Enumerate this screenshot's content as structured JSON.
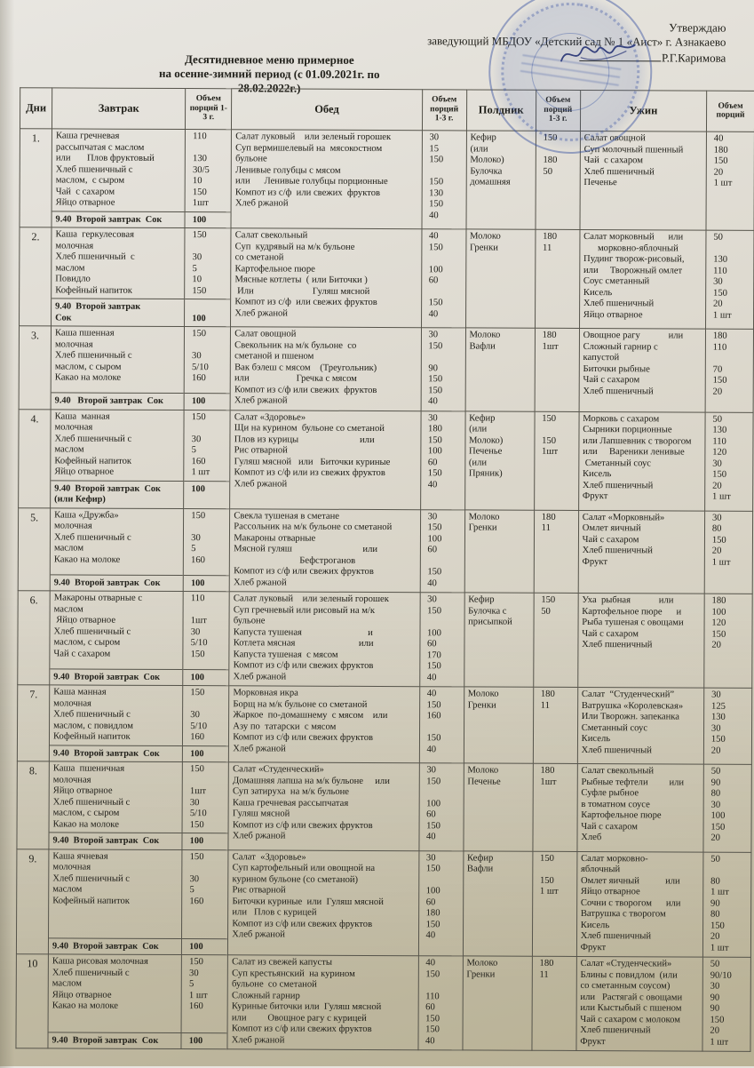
{
  "colors": {
    "stamp_blue": "#324e9f",
    "paper": "#d9d4c6",
    "ink": "#21201a",
    "signature_ink": "#26306e"
  },
  "approval": {
    "line1": "Утверждаю",
    "line2": "заведующий МБДОУ «Детский сад № 1 «Аист» г.  Азнакаево",
    "signee": "Р.Г.Каримова"
  },
  "title": {
    "line1": "Десятидневное меню примерное",
    "line2": "на осенне-зимний период (с 01.09.2021г. по 28.02.2022г.)"
  },
  "table": {
    "headers": [
      "Дни",
      "Завтрак",
      "Объем порций 1-3 г.",
      "Обед",
      "Объем порций 1-3 г.",
      "Полдник",
      "Объем порций 1-3 г.",
      "Ужин",
      "Объем порций"
    ],
    "days": [
      {
        "num": "1.",
        "breakfast": {
          "lines": [
            "Каша гречневая",
            "рассыпчатая с маслом",
            "или       Плов фруктовый",
            "Хлеб пшеничный с",
            "маслом,  с сыром",
            "Чай  с сахаром",
            "Яйцо отварное"
          ],
          "vols": [
            "110",
            "",
            "130",
            "30/5",
            "10",
            "150",
            "1шт"
          ]
        },
        "second_breakfast": {
          "lines": [
            "9.40  Второй завтрак  Сок"
          ],
          "vols": [
            "100"
          ]
        },
        "lunch": {
          "lines": [
            "Салат луковый    или зеленый горошек",
            "Суп вермишелевый на  мясокостном",
            "бульоне",
            "Ленивые голубцы с мясом",
            "или      Ленивые голубцы порционные",
            "Компот из с/ф  или свежих  фруктов",
            "Хлеб ржаной"
          ],
          "vols": [
            "30      15",
            "150",
            "",
            "150",
            "130",
            "150",
            "40"
          ]
        },
        "snack": {
          "lines": [
            "Кефир",
            "(или",
            "Молоко)",
            "Булочка",
            "домашняя"
          ],
          "vols": [
            "150",
            "",
            "180",
            "50",
            ""
          ]
        },
        "dinner": {
          "lines": [
            "Салат овощной",
            "Суп молочный пшенный",
            "Чай  с сахаром",
            "Хлеб пшеничный",
            "Печенье"
          ],
          "vols": [
            "40",
            "180",
            "150",
            "20",
            "1 шт"
          ]
        }
      },
      {
        "num": "2.",
        "breakfast": {
          "lines": [
            "Каша  геркулесовая",
            "молочная",
            "Хлеб пшеничный  с",
            "маслом",
            "Повидло",
            "Кофейный напиток"
          ],
          "vols": [
            "150",
            "",
            "30",
            "5",
            "10",
            "150"
          ]
        },
        "second_breakfast": {
          "lines": [
            "9.40  Второй завтрак",
            "Сок"
          ],
          "vols": [
            "",
            "100"
          ]
        },
        "lunch": {
          "lines": [
            "Салат свекольный",
            "Суп  кудрявый на м/к бульоне",
            "со сметаной",
            "Картофельное пюре",
            "Мясные котлеты  ( или Биточки )",
            " Или                         Гуляш мясной",
            "Компот из с/ф  или свежих фруктов",
            "Хлеб ржаной"
          ],
          "vols": [
            "40",
            "150",
            "",
            "100",
            "60",
            "",
            "150",
            "40"
          ]
        },
        "snack": {
          "lines": [
            "Молоко",
            "Гренки"
          ],
          "vols": [
            "180",
            "11"
          ]
        },
        "dinner": {
          "lines": [
            "Салат морковный      или",
            "      морковно-яблочный",
            "Пудинг творож-рисовый,",
            "или     Творожный омлет",
            "Соус сметанный",
            "Кисель",
            "Хлеб пшеничный",
            "Яйцо отварное"
          ],
          "vols": [
            "50",
            "",
            "130",
            "110",
            "30",
            "150",
            "20",
            "1 шт"
          ]
        }
      },
      {
        "num": "3.",
        "breakfast": {
          "lines": [
            "Каша пшенная",
            "молочная",
            "Хлеб пшеничный с",
            "маслом, с сыром",
            "Какао на молоке"
          ],
          "vols": [
            "150",
            "",
            "30",
            "5/10",
            "160"
          ]
        },
        "second_breakfast": {
          "lines": [
            "9.40   Второй завтрак  Сок"
          ],
          "vols": [
            "100"
          ]
        },
        "lunch": {
          "lines": [
            "Салат овощной",
            "Свекольник на м/к бульоне  со",
            "сметаной и пшеном",
            "Вак бэлеш с мясом    (Треугольник)",
            "или                    Гречка с мясом",
            "Компот из с/ф или свежих  фруктов",
            "Хлеб ржаной"
          ],
          "vols": [
            "30",
            "150",
            "",
            "90",
            "150",
            "150",
            "40"
          ]
        },
        "snack": {
          "lines": [
            "Молоко",
            "Вафли"
          ],
          "vols": [
            "180",
            "1шт"
          ]
        },
        "dinner": {
          "lines": [
            "Овощное рагу            или",
            "Сложный гарнир с",
            "капустой",
            "Биточки рыбные",
            "Чай с сахаром",
            "Хлеб пшеничный"
          ],
          "vols": [
            "180",
            "110",
            "",
            "70",
            "150",
            "20"
          ]
        }
      },
      {
        "num": "4.",
        "breakfast": {
          "lines": [
            "Каша  манная",
            "молочная",
            "Хлеб пшеничный с",
            "маслом",
            "Кофейный напиток",
            "Яйцо отварное"
          ],
          "vols": [
            "150",
            "",
            "30",
            "5",
            "160",
            "1 шт"
          ]
        },
        "second_breakfast": {
          "lines": [
            "9.40  Второй завтрак  Сок",
            "(или Кефир)"
          ],
          "vols": [
            "100",
            ""
          ]
        },
        "lunch": {
          "lines": [
            "Салат «Здоровье»",
            "Щи на курином  бульоне со сметаной",
            "Плов из курицы                          или",
            "Рис отварной",
            "Гуляш мясной   или   Биточки куриные",
            "Компот из с/ф или из свежих фруктов",
            "Хлеб ржаной"
          ],
          "vols": [
            "30",
            "180",
            "150",
            "100",
            "60",
            "150",
            "40"
          ]
        },
        "snack": {
          "lines": [
            "Кефир",
            "(или",
            "Молоко)",
            "Печенье",
            "(или",
            "Пряник)"
          ],
          "vols": [
            "150",
            "",
            "150",
            "1шт",
            "",
            ""
          ]
        },
        "dinner": {
          "lines": [
            "Морковь с сахаром",
            "Сырники порционные",
            "или Лапшевник с творогом",
            "или     Вареники ленивые",
            " Сметанный соус",
            "Кисель",
            "Хлеб пшеничный",
            "Фрукт"
          ],
          "vols": [
            "50",
            "130",
            "110",
            "120",
            "30",
            "150",
            "20",
            "1 шт"
          ]
        }
      },
      {
        "num": "5.",
        "breakfast": {
          "lines": [
            "Каша «Дружба»",
            "молочная",
            "Хлеб пшеничный с",
            "маслом",
            "Какао на молоке"
          ],
          "vols": [
            "150",
            "",
            "30",
            "5",
            "160"
          ]
        },
        "second_breakfast": {
          "lines": [
            "9.40  Второй завтрак  Сок"
          ],
          "vols": [
            "100"
          ]
        },
        "lunch": {
          "lines": [
            "Свекла тушеная в сметане",
            "Рассольник на м/к бульоне со сметаной",
            "Макароны отварные",
            "Мясной гуляш                              или",
            "                            Бефстроганов",
            "Компот из с/ф или свежих фруктов",
            "Хлеб ржаной"
          ],
          "vols": [
            "30",
            "150",
            "100",
            "60",
            "",
            "150",
            "40"
          ]
        },
        "snack": {
          "lines": [
            "Молоко",
            "Гренки"
          ],
          "vols": [
            "180",
            "11"
          ]
        },
        "dinner": {
          "lines": [
            "Салат «Морковный»",
            "Омлет яичный",
            "Чай с сахаром",
            "Хлеб пшеничный",
            "Фрукт"
          ],
          "vols": [
            "30",
            "80",
            "150",
            "20",
            "1 шт"
          ]
        }
      },
      {
        "num": "6.",
        "breakfast": {
          "lines": [
            "Макароны отварные с",
            "маслом",
            " Яйцо отварное",
            "Хлеб пшеничный с",
            "маслом, с сыром",
            "Чай с сахаром"
          ],
          "vols": [
            "110",
            "",
            "1шт",
            "30",
            "5/10",
            "150"
          ]
        },
        "second_breakfast": {
          "lines": [
            "9.40  Второй завтрак  Сок"
          ],
          "vols": [
            "100"
          ]
        },
        "lunch": {
          "lines": [
            "Салат луковый    или зеленый горошек",
            "Суп гречневый или рисовый на м/к",
            "бульоне",
            "Капуста тушеная                            и",
            "Котлета мясная                           или",
            "Капуста тушеная  с мясом",
            "Компот из с/ф или свежих фруктов",
            "Хлеб ржаной"
          ],
          "vols": [
            "30",
            "150",
            "",
            "100",
            "60",
            "170",
            "150",
            "40"
          ]
        },
        "snack": {
          "lines": [
            "Кефир",
            "Булочка с",
            "присыпкой"
          ],
          "vols": [
            "150",
            "50",
            ""
          ]
        },
        "dinner": {
          "lines": [
            "Уха  рыбная            или",
            "Картофельное пюре      и",
            "Рыба тушеная с овощами",
            "Чай с сахаром",
            "Хлеб пшеничный"
          ],
          "vols": [
            "180",
            "100",
            "120",
            "150",
            "20"
          ]
        }
      },
      {
        "num": "7.",
        "breakfast": {
          "lines": [
            "Каша манная",
            "молочная",
            "Хлеб пшеничный с",
            "маслом, с повидлом",
            "Кофейный напиток"
          ],
          "vols": [
            "150",
            "",
            "30",
            "5/10",
            "160"
          ]
        },
        "second_breakfast": {
          "lines": [
            "9.40  Второй завтрак  Сок"
          ],
          "vols": [
            "100"
          ]
        },
        "lunch": {
          "lines": [
            "Морковная икра",
            "Борщ на м/к бульоне со сметаной",
            "Жаркое  по-домашнему  с мясом    или",
            "Азу по  татарски  с мясом",
            "Компот из с/ф или свежих фруктов",
            "Хлеб ржаной"
          ],
          "vols": [
            "40",
            "150",
            "160",
            "",
            "150",
            "40"
          ]
        },
        "snack": {
          "lines": [
            "Молоко",
            "Гренки"
          ],
          "vols": [
            "180",
            "11"
          ]
        },
        "dinner": {
          "lines": [
            "Салат  “Студенческий”",
            "Ватрушка «Королевская»",
            "Или Творожн. запеканка",
            "Сметанный соус",
            "Кисель",
            "Хлеб пшеничный"
          ],
          "vols": [
            "30",
            "125",
            "130",
            "30",
            "150",
            "20"
          ]
        }
      },
      {
        "num": "8.",
        "breakfast": {
          "lines": [
            "Каша  пшеничная",
            "молочная",
            "Яйцо отварное",
            "Хлеб пшеничный с",
            "маслом, с сыром",
            "Какао на молоке"
          ],
          "vols": [
            "150",
            "",
            "1шт",
            "30",
            "5/10",
            "150"
          ]
        },
        "second_breakfast": {
          "lines": [
            "9.40  Второй завтрак  Сок"
          ],
          "vols": [
            "100"
          ]
        },
        "lunch": {
          "lines": [
            "Салат «Студенческий»",
            "Домашняя лапша на м/к бульоне     или",
            "Суп затируха  на м/к бульоне",
            "Каша гречневая рассыпчатая",
            "Гуляш мясной",
            "Компот из с/ф или свежих фруктов",
            "Хлеб ржаной"
          ],
          "vols": [
            "30",
            "150",
            "",
            "100",
            "60",
            "150",
            "40"
          ]
        },
        "snack": {
          "lines": [
            "Молоко",
            "Печенье"
          ],
          "vols": [
            "180",
            "1шт"
          ]
        },
        "dinner": {
          "lines": [
            "Салат свекольный",
            "Рыбные тефтели         или",
            "Суфле рыбное",
            "в томатном соусе",
            "Картофельное пюре",
            "Чай с сахаром",
            "Хлеб"
          ],
          "vols": [
            "50",
            "90",
            "80",
            "30",
            "100",
            "150",
            "20"
          ]
        }
      },
      {
        "num": "9.",
        "breakfast": {
          "lines": [
            "Каша ячневая",
            "молочная",
            "Хлеб пшеничный с",
            "маслом",
            "Кофейный напиток"
          ],
          "vols": [
            "150",
            "",
            "30",
            "5",
            "160"
          ]
        },
        "second_breakfast": {
          "lines": [
            "9.40  Второй завтрак  Сок"
          ],
          "vols": [
            "100"
          ]
        },
        "lunch": {
          "lines": [
            "Салат  «Здоровье»",
            "Суп картофельный или овощной на",
            "курином бульоне (со сметаной)",
            "Рис отварной",
            "Биточки куриные  или  Гуляш мясной",
            "или   Плов с курицей",
            "Компот из с/ф или свежих фруктов",
            "Хлеб ржаной"
          ],
          "vols": [
            "30",
            "150",
            "",
            "100",
            "60",
            "180",
            "150",
            "40"
          ]
        },
        "snack": {
          "lines": [
            "Кефир",
            "Вафли",
            "",
            ""
          ],
          "vols": [
            "150",
            "",
            "150",
            "1 шт"
          ]
        },
        "dinner": {
          "lines": [
            "Салат морковно-",
            "яблочный",
            "Омлет яичный           или",
            "Яйцо отварное",
            "Сочни с творогом      или",
            "Ватрушка с творогом",
            "Кисель",
            "Хлеб пшеничный",
            "Фрукт"
          ],
          "vols": [
            "50",
            "",
            "80",
            "1 шт",
            "90",
            "80",
            "150",
            "20",
            "1 шт"
          ]
        }
      },
      {
        "num": "10",
        "breakfast": {
          "lines": [
            "Каша рисовая молочная",
            "Хлеб пшеничный с",
            "маслом",
            "Яйцо отварное",
            "Какао на молоке"
          ],
          "vols": [
            "150",
            "30",
            "5",
            "1 шт",
            "160"
          ]
        },
        "second_breakfast": {
          "lines": [
            "9.40  Второй завтрак  Сок"
          ],
          "vols": [
            "100"
          ]
        },
        "lunch": {
          "lines": [
            "Салат из свежей капусты",
            "Суп крестьянский  на курином",
            "бульоне  со сметаной",
            "Сложный гарнир",
            "Куриные биточки или  Гуляш мясной",
            "или         Овощное рагу с курицей",
            "Компот из с/ф или свежих фруктов",
            "Хлеб ржаной"
          ],
          "vols": [
            "40",
            "150",
            "",
            "110",
            "60",
            "150",
            "150",
            "40"
          ]
        },
        "snack": {
          "lines": [
            "Молоко",
            "Гренки"
          ],
          "vols": [
            "180",
            "11"
          ]
        },
        "dinner": {
          "lines": [
            "Салат «Студенческий»",
            "Блины с повидлом  (или",
            "со сметанным соусом)",
            "или   Растягай с овощами",
            "или Кыстыбый с пшеном",
            "Чай с сахаром с молоком",
            "Хлеб пшеничный",
            "Фрукт"
          ],
          "vols": [
            "50",
            "90/10",
            "30",
            "90",
            "90",
            "150",
            "20",
            "1 шт"
          ]
        }
      }
    ]
  }
}
